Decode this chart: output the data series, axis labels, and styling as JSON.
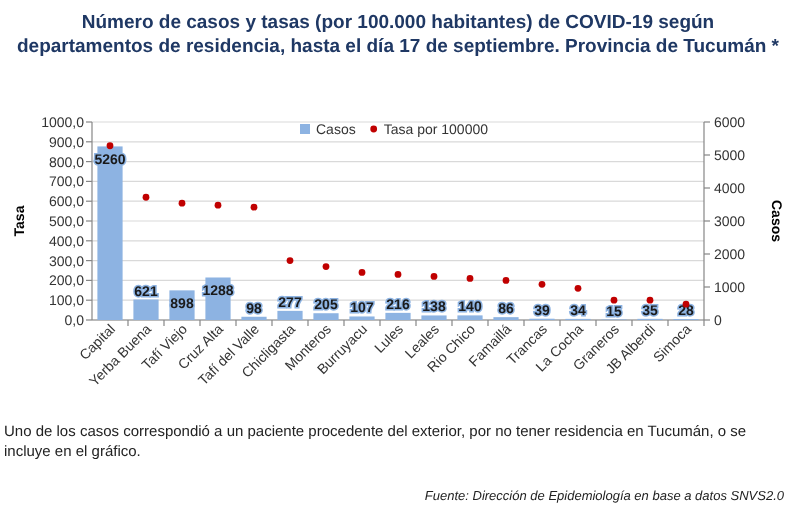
{
  "chart_data": {
    "type": "bar",
    "title": "Número de casos y tasas (por 100.000 habitantes) de COVID-19 según departamentos de residencia, hasta el día 17 de septiembre. Provincia de Tucumán *",
    "categories": [
      "Capital",
      "Yerba Buena",
      "Tafí Viejo",
      "Cruz Alta",
      "Tafí del Valle",
      "Chicligasta",
      "Monteros",
      "Burruyacu",
      "Lules",
      "Leales",
      "Rio Chico",
      "Famaillá",
      "Trancas",
      "La Cocha",
      "Graneros",
      "JB Alberdi",
      "Simoca"
    ],
    "series": [
      {
        "name": "Casos",
        "color": "#8db3e2",
        "axis": "y2",
        "values": [
          5260,
          621,
          898,
          1288,
          98,
          277,
          205,
          107,
          216,
          138,
          140,
          86,
          39,
          34,
          15,
          35,
          28
        ],
        "value_labels": [
          "5260",
          "621",
          "898",
          "1288",
          "98",
          "277",
          "205",
          "107",
          "216",
          "138",
          "140",
          "86",
          "39",
          "34",
          "15",
          "35",
          "28"
        ]
      },
      {
        "type": "scatter",
        "name": "Tasa por 100000",
        "color": "#c00000",
        "values": [
          880,
          620,
          590,
          580,
          570,
          300,
          270,
          240,
          230,
          220,
          210,
          200,
          180,
          160,
          100,
          100,
          80
        ]
      }
    ],
    "ylabel": "Tasa",
    "y2label": "Casos",
    "ylim": [
      0,
      1000
    ],
    "yticks": [
      {
        "value": 0,
        "label": "0,0"
      },
      {
        "value": 100,
        "label": "100,0"
      },
      {
        "value": 200,
        "label": "200,0"
      },
      {
        "value": 300,
        "label": "300,0"
      },
      {
        "value": 400,
        "label": "400,0"
      },
      {
        "value": 500,
        "label": "500,0"
      },
      {
        "value": 600,
        "label": "600,0"
      },
      {
        "value": 700,
        "label": "700,0"
      },
      {
        "value": 800,
        "label": "800,0"
      },
      {
        "value": 900,
        "label": "900,0"
      },
      {
        "value": 1000,
        "label": "1000,0"
      }
    ],
    "y2lim": [
      0,
      6000
    ],
    "y2ticks": [
      0,
      1000,
      2000,
      3000,
      4000,
      5000,
      6000
    ],
    "grid": "y",
    "legend": "top",
    "marker": "circle",
    "annotations": [
      "Uno de los casos correspondió a un paciente procedente del exterior, por no tener residencia en Tucumán, o se incluye en el gráfico.",
      "Fuente: Dirección de Epidemiología en base a datos SNVS2.0"
    ]
  }
}
